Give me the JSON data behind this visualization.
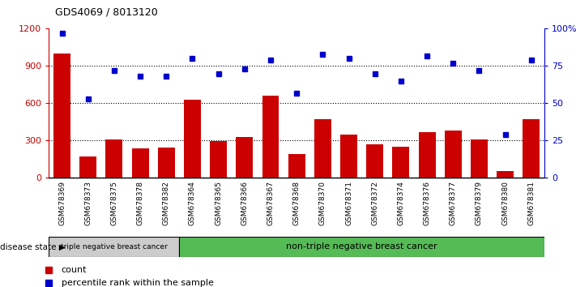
{
  "title": "GDS4069 / 8013120",
  "samples": [
    "GSM678369",
    "GSM678373",
    "GSM678375",
    "GSM678378",
    "GSM678382",
    "GSM678364",
    "GSM678365",
    "GSM678366",
    "GSM678367",
    "GSM678368",
    "GSM678370",
    "GSM678371",
    "GSM678372",
    "GSM678374",
    "GSM678376",
    "GSM678377",
    "GSM678379",
    "GSM678380",
    "GSM678381"
  ],
  "counts": [
    1000,
    170,
    310,
    235,
    245,
    630,
    295,
    330,
    660,
    195,
    470,
    350,
    270,
    250,
    370,
    380,
    310,
    55,
    470
  ],
  "percentiles": [
    97,
    53,
    72,
    68,
    68,
    80,
    70,
    73,
    79,
    57,
    83,
    80,
    70,
    65,
    82,
    77,
    72,
    29,
    79
  ],
  "triple_neg_count": 5,
  "ylim_left": [
    0,
    1200
  ],
  "ylim_right": [
    0,
    100
  ],
  "yticks_left": [
    0,
    300,
    600,
    900,
    1200
  ],
  "yticks_right": [
    0,
    25,
    50,
    75,
    100
  ],
  "bar_color": "#cc0000",
  "dot_color": "#0000cc",
  "triple_neg_bg": "#cccccc",
  "non_triple_neg_bg": "#55bb55",
  "triple_neg_label": "triple negative breast cancer",
  "non_triple_neg_label": "non-triple negative breast cancer",
  "disease_state_label": "disease state",
  "legend_count": "count",
  "legend_percentile": "percentile rank within the sample",
  "right_axis_label_color": "#0000cc",
  "left_axis_label_color": "#cc0000",
  "right_ytick_labels": [
    "0",
    "25",
    "50",
    "75",
    "100%"
  ],
  "plot_bg": "#ffffff",
  "tick_bg": "#cccccc"
}
